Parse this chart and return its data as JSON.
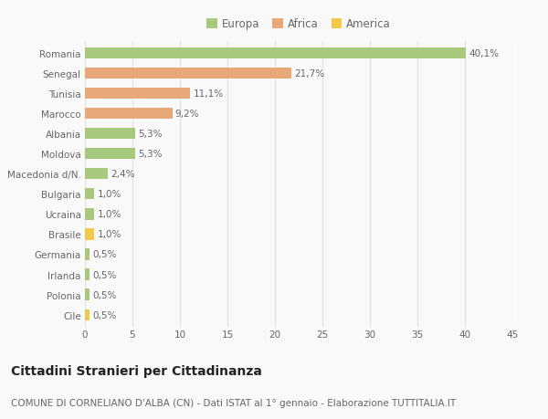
{
  "categories": [
    "Romania",
    "Senegal",
    "Tunisia",
    "Marocco",
    "Albania",
    "Moldova",
    "Macedonia d/N.",
    "Bulgaria",
    "Ucraina",
    "Brasile",
    "Germania",
    "Irlanda",
    "Polonia",
    "Cile"
  ],
  "values": [
    40.1,
    21.7,
    11.1,
    9.2,
    5.3,
    5.3,
    2.4,
    1.0,
    1.0,
    1.0,
    0.5,
    0.5,
    0.5,
    0.5
  ],
  "labels": [
    "40,1%",
    "21,7%",
    "11,1%",
    "9,2%",
    "5,3%",
    "5,3%",
    "2,4%",
    "1,0%",
    "1,0%",
    "1,0%",
    "0,5%",
    "0,5%",
    "0,5%",
    "0,5%"
  ],
  "continents": [
    "Europa",
    "Africa",
    "Africa",
    "Africa",
    "Europa",
    "Europa",
    "Europa",
    "Europa",
    "Europa",
    "America",
    "Europa",
    "Europa",
    "Europa",
    "America"
  ],
  "colors": {
    "Europa": "#a8c87e",
    "Africa": "#e8a878",
    "America": "#f2c84b"
  },
  "legend_items": [
    "Europa",
    "Africa",
    "America"
  ],
  "legend_colors": [
    "#a8c87e",
    "#e8a878",
    "#f2c84b"
  ],
  "title": "Cittadini Stranieri per Cittadinanza",
  "subtitle": "COMUNE DI CORNELIANO D'ALBA (CN) - Dati ISTAT al 1° gennaio - Elaborazione TUTTITALIA.IT",
  "xlim": [
    0,
    45
  ],
  "xticks": [
    0,
    5,
    10,
    15,
    20,
    25,
    30,
    35,
    40,
    45
  ],
  "background_color": "#f9f9f9",
  "grid_color": "#e0e0e0",
  "bar_height": 0.55,
  "label_fontsize": 7.5,
  "tick_fontsize": 7.5,
  "title_fontsize": 10,
  "subtitle_fontsize": 7.5
}
